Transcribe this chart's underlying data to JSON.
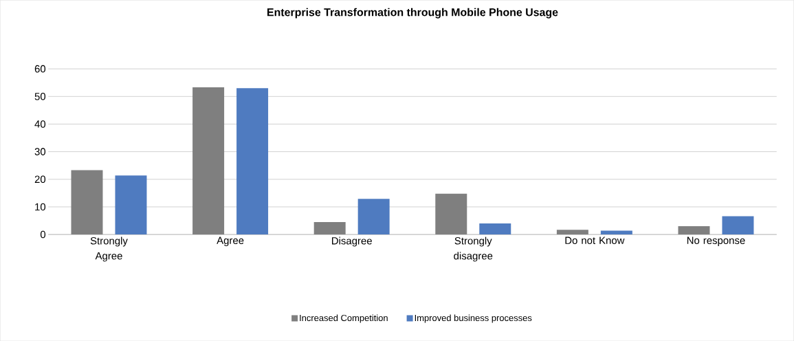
{
  "chart_data": {
    "type": "bar",
    "title": "Enterprise Transformation through Mobile Phone Usage",
    "categories": [
      "Strongly Agree",
      "Agree",
      "Disagree",
      "Strongly disagree",
      "Do not Know",
      "No response"
    ],
    "series": [
      {
        "name": "Increased Competition",
        "color": "#7f7f7f",
        "values": [
          23.3,
          53.3,
          4.5,
          14.8,
          1.7,
          3.0
        ]
      },
      {
        "name": "Improved business processes",
        "color": "#4f7bc0",
        "values": [
          21.4,
          53.0,
          12.9,
          4.0,
          1.4,
          6.6
        ]
      }
    ],
    "ylim": [
      0,
      60
    ],
    "yticks": [
      0,
      10,
      20,
      30,
      40,
      50,
      60
    ],
    "grid": "y",
    "legend": "bottom"
  }
}
